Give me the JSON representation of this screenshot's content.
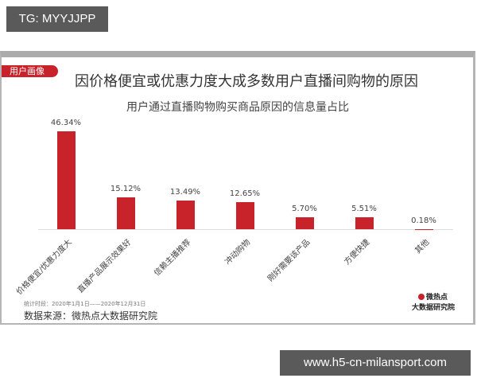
{
  "watermarks": {
    "top": "TG: MYYJJPP",
    "bottom": "www.h5-cn-milansport.com"
  },
  "card": {
    "badge": "用户画像",
    "title": "因价格便宜或优惠力度大成多数用户直播间购物的原因",
    "subtitle": "用户通过直播购物购买商品原因的信息量占比",
    "period": "统计时段：2020年1月1日——2020年12月31日",
    "source": "数据来源：微热点大数据研究院",
    "logo": {
      "line1": "微热点",
      "line2": "大数据研究院"
    }
  },
  "chart_data": {
    "type": "bar",
    "title": "因价格便宜或优惠力度大成多数用户直播间购物的原因",
    "subtitle": "用户通过直播购物购买商品原因的信息量占比",
    "categories": [
      "价格便宜/优惠力度大",
      "直播产品展示效果好",
      "信赖主播推荐",
      "冲动购物",
      "刚好需要该产品",
      "方便快捷",
      "其他"
    ],
    "values": [
      46.34,
      15.12,
      13.49,
      12.65,
      5.7,
      5.51,
      0.18
    ],
    "labels": [
      "46.34%",
      "15.12%",
      "13.49%",
      "12.65%",
      "5.70%",
      "5.51%",
      "0.18%"
    ],
    "xlabel": "",
    "ylabel": "",
    "ylim": [
      0,
      50
    ],
    "grid": false,
    "legend": "none",
    "bar_color": "#c8232a"
  }
}
